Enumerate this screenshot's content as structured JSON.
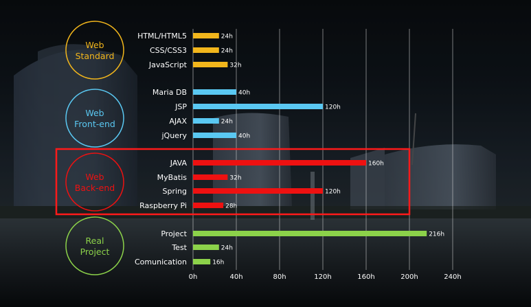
{
  "colors": {
    "web_standard": "#f2b61c",
    "web_frontend": "#5ac8f2",
    "web_backend": "#ee1111",
    "real_project": "#8cd24a",
    "highlight_box": "#ff1a1a"
  },
  "chart_data": {
    "type": "bar",
    "orientation": "horizontal",
    "grid": true,
    "xlim": [
      0,
      240
    ],
    "xticks": [
      "0h",
      "40h",
      "80h",
      "120h",
      "160h",
      "200h",
      "240h"
    ],
    "value_suffix": "h",
    "groups": [
      {
        "label": "Web Standard",
        "label_lines": [
          "Web",
          "Standard"
        ],
        "color": "#f2b61c",
        "items": [
          {
            "name": "HTML/HTML5",
            "value": 24
          },
          {
            "name": "CSS/CSS3",
            "value": 24
          },
          {
            "name": "JavaScript",
            "value": 32
          }
        ]
      },
      {
        "label": "Web Front-end",
        "label_lines": [
          "Web",
          "Front-end"
        ],
        "color": "#5ac8f2",
        "items": [
          {
            "name": "Maria DB",
            "value": 40
          },
          {
            "name": "JSP",
            "value": 120
          },
          {
            "name": "AJAX",
            "value": 24
          },
          {
            "name": "jQuery",
            "value": 40
          }
        ]
      },
      {
        "label": "Web Back-end",
        "label_lines": [
          "Web",
          "Back-end"
        ],
        "color": "#ee1111",
        "highlighted": true,
        "items": [
          {
            "name": "JAVA",
            "value": 160
          },
          {
            "name": "MyBatis",
            "value": 32
          },
          {
            "name": "Spring",
            "value": 120
          },
          {
            "name": "Raspberry Pi",
            "value": 28
          }
        ]
      },
      {
        "label": "Real Project",
        "label_lines": [
          "Real",
          "Project"
        ],
        "color": "#8cd24a",
        "items": [
          {
            "name": "Project",
            "value": 216
          },
          {
            "name": "Test",
            "value": 24
          },
          {
            "name": "Comunication",
            "value": 16
          }
        ]
      }
    ]
  }
}
